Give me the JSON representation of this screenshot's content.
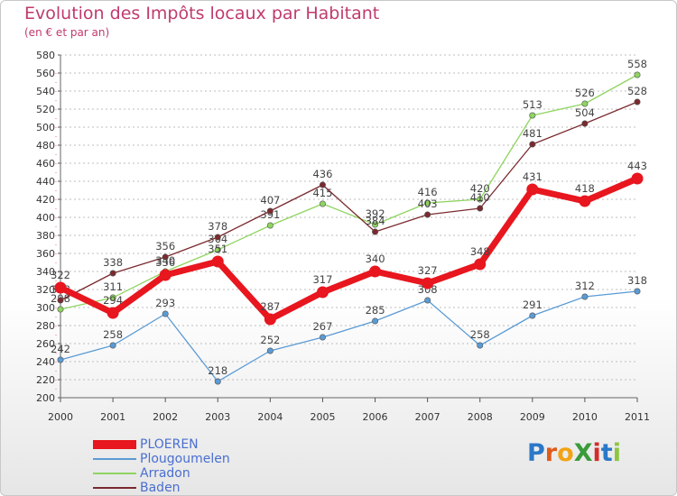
{
  "title": "Evolution des Impôts locaux par Habitant",
  "subtitle": "(en € et par an)",
  "logo": {
    "text": "ProXiti",
    "letters": [
      "P",
      "r",
      "o",
      "X",
      "i",
      "t",
      "i"
    ],
    "colors": [
      "#2a78c8",
      "#e05a1a",
      "#f2a314",
      "#3a9b3a",
      "#d42b2b",
      "#2a78c8",
      "#8cc63f"
    ]
  },
  "chart_data": {
    "type": "line",
    "title": "Evolution des Impôts locaux par Habitant",
    "subtitle": "(en € et par an)",
    "xlabel": "",
    "ylabel": "",
    "ylim": [
      200,
      580
    ],
    "ytick_step": 20,
    "grid": "horizontal-dashed",
    "legend_position": "bottom-left",
    "x": [
      "2000",
      "2001",
      "2002",
      "2003",
      "2004",
      "2005",
      "2006",
      "2007",
      "2008",
      "2009",
      "2010",
      "2011"
    ],
    "series": [
      {
        "name": "PLOEREN",
        "color": "#e8161e",
        "values": [
          322,
          294,
          336,
          351,
          287,
          317,
          340,
          327,
          348,
          431,
          418,
          443
        ]
      },
      {
        "name": "Plougoumelen",
        "color": "#5a9bd5",
        "values": [
          242,
          258,
          293,
          218,
          252,
          267,
          285,
          308,
          258,
          291,
          312,
          318
        ]
      },
      {
        "name": "Arradon",
        "color": "#8fd460",
        "values": [
          298,
          311,
          340,
          364,
          391,
          415,
          392,
          416,
          420,
          513,
          526,
          558
        ]
      },
      {
        "name": "Baden",
        "color": "#7a2a2e",
        "values": [
          308,
          338,
          356,
          378,
          407,
          436,
          384,
          403,
          410,
          481,
          504,
          528
        ]
      }
    ]
  }
}
